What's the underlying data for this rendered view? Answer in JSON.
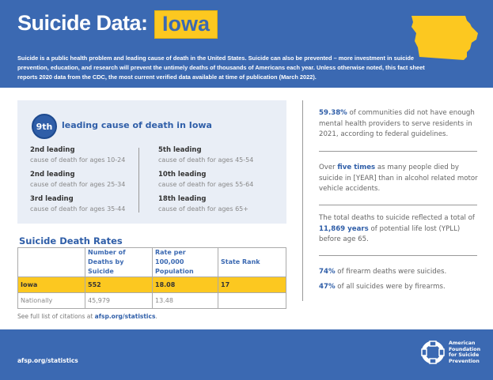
{
  "header": {
    "title": "Suicide Data:",
    "state": "Iowa",
    "intro": "Suicide is a public health problem and leading cause of death in the United States. Suicide can also be prevented – more investment in suicide prevention, education, and research will prevent the untimely deaths of thousands of Americans each year. Unless otherwise noted, this fact sheet reports 2020 data from the CDC, the most current verified data available at time of publication (March 2022).",
    "map_color": "#fcc820"
  },
  "ranking": {
    "badge": "9th",
    "label": "leading cause of death in Iowa",
    "items": [
      {
        "rank": "2nd leading",
        "desc": "cause of death for ages 10-24"
      },
      {
        "rank": "2nd leading",
        "desc": "cause of death for ages 25-34"
      },
      {
        "rank": "3rd leading",
        "desc": "cause of death for ages 35-44"
      },
      {
        "rank": "5th leading",
        "desc": "cause of death for ages 45-54"
      },
      {
        "rank": "10th leading",
        "desc": "cause of death for ages 55-64"
      },
      {
        "rank": "18th leading",
        "desc": "cause of death for ages 65+"
      }
    ]
  },
  "rates": {
    "title": "Suicide Death Rates",
    "headers": [
      "",
      "Number of Deaths by Suicide",
      "Rate per 100,000 Population",
      "State Rank"
    ],
    "rows": [
      [
        "Iowa",
        "552",
        "18.08",
        "17"
      ],
      [
        "Nationally",
        "45,979",
        "13.48",
        ""
      ]
    ]
  },
  "citation": {
    "text": "See full list of citations at ",
    "link": "afsp.org/statistics",
    "end": "."
  },
  "facts": [
    {
      "bold": "59.38%",
      "text": " of communities did not have enough mental health providers to serve residents in 2021, according to federal guidelines."
    },
    {
      "pre": "Over ",
      "bold": "five times",
      "text": " as many people died by suicide in [YEAR] than in alcohol related motor vehicle accidents."
    },
    {
      "pre": "The total deaths to suicide reflected a total of ",
      "bold": "11,869 years",
      "text": " of potential life lost (YPLL) before age 65."
    },
    {
      "bold": "74%",
      "text": " of firearm deaths were suicides."
    },
    {
      "bold": "47%",
      "text": " of all suicides were by firearms."
    }
  ],
  "footer": {
    "url": "afsp.org/statistics",
    "logo_lines": [
      "American",
      "Foundation",
      "for Suicide",
      "Prevention"
    ]
  },
  "colors": {
    "brand": "#3b69b2",
    "accent": "#fcc820"
  }
}
